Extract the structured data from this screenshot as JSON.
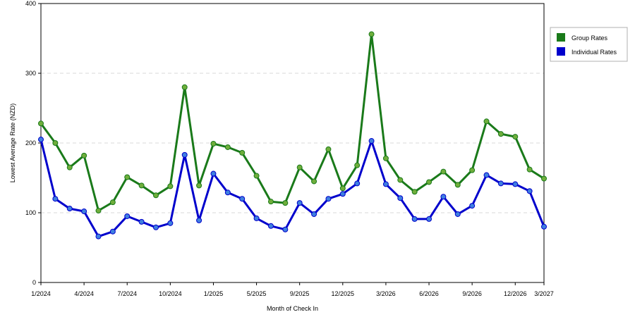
{
  "chart_data": {
    "type": "line",
    "title": "",
    "xlabel": "Month of Check In",
    "ylabel": "Lowest Average Rate (NZD)",
    "ylim": [
      0,
      400
    ],
    "yticks": [
      0,
      100,
      200,
      300,
      400
    ],
    "x_tick_labels": [
      "1/2024",
      "4/2024",
      "7/2024",
      "10/2024",
      "1/2025",
      "5/2025",
      "9/2025",
      "12/2025",
      "3/2026",
      "6/2026",
      "9/2026",
      "12/2026",
      "3/2027"
    ],
    "x_tick_index": [
      0,
      3,
      6,
      9,
      12,
      15,
      18,
      21,
      24,
      27,
      30,
      33,
      35
    ],
    "grid": "horizontal-dashed",
    "legend_position": "right",
    "series": [
      {
        "name": "Group Rates",
        "color": "#1a7a1a",
        "marker_color": "#6fae3c",
        "values": [
          228,
          200,
          165,
          182,
          103,
          115,
          151,
          139,
          125,
          138,
          280,
          139,
          199,
          194,
          186,
          153,
          116,
          114,
          165,
          145,
          191,
          135,
          168,
          356,
          178,
          147,
          130,
          144,
          159,
          140,
          161,
          231,
          213,
          209,
          162,
          149
        ]
      },
      {
        "name": "Individual Rates",
        "color": "#0000cc",
        "marker_color": "#3f7fe0",
        "values": [
          205,
          120,
          106,
          102,
          66,
          73,
          95,
          87,
          79,
          85,
          183,
          89,
          156,
          129,
          120,
          92,
          81,
          76,
          114,
          98,
          120,
          127,
          142,
          203,
          141,
          121,
          91,
          91,
          123,
          98,
          110,
          154,
          142,
          141,
          131,
          80
        ]
      }
    ]
  }
}
